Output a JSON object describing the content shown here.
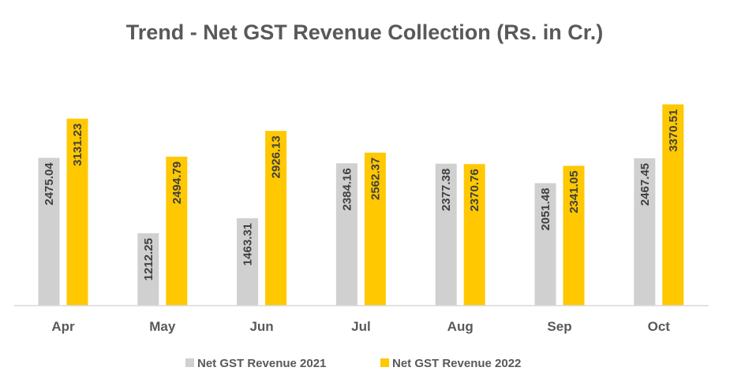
{
  "chart_data": {
    "type": "bar",
    "title": "Trend - Net GST Revenue Collection (Rs. in Cr.)",
    "categories": [
      "Apr",
      "May",
      "Jun",
      "Jul",
      "Aug",
      "Sep",
      "Oct"
    ],
    "series": [
      {
        "name": "Net GST Revenue 2021",
        "color": "#D0D0D0",
        "values": [
          2475.04,
          1212.25,
          1463.31,
          2384.16,
          2377.38,
          2051.48,
          2467.45
        ]
      },
      {
        "name": "Net GST Revenue 2022",
        "color": "#FFC800",
        "values": [
          3131.23,
          2494.79,
          2926.13,
          2562.37,
          2370.76,
          2341.05,
          3370.51
        ]
      }
    ],
    "xlabel": "",
    "ylabel": "",
    "ylim": [
      0,
      3400
    ],
    "grid": false,
    "data_labels": "inside-end, rotated",
    "legend": "bottom"
  }
}
